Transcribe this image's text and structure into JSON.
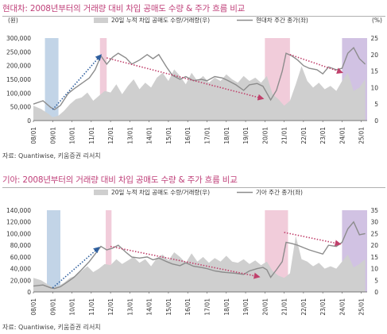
{
  "chart_data": [
    {
      "type": "line",
      "title": "현대차: 2008년부터의 거래량 대비 차입 공매도 수량 & 주가 흐름 비교",
      "source": "자료: Quantiwise, 키움증권 리서치",
      "y_left_unit": "(원)",
      "y_right_unit": "(%)",
      "y_left_ticks": [
        "0",
        "50,000",
        "100,000",
        "150,000",
        "200,000",
        "250,000",
        "300,000"
      ],
      "y_right_ticks": [
        "0",
        "5",
        "10",
        "15",
        "20",
        "25"
      ],
      "ylim_left": [
        0,
        300000
      ],
      "ylim_right": [
        0,
        25
      ],
      "x_ticks": [
        "08/01",
        "09/01",
        "10/01",
        "11/01",
        "12/01",
        "13/01",
        "14/01",
        "15/01",
        "16/01",
        "17/01",
        "18/01",
        "19/01",
        "20/01",
        "21/01",
        "22/01",
        "23/01",
        "24/01",
        "25/01"
      ],
      "x_range": [
        2008.0,
        2025.3
      ],
      "grid": false,
      "legend_position": "top",
      "series": [
        {
          "name": "20일 누적 차입 공매도 수량/거래량(우)",
          "kind": "area",
          "color": "#cfcfcf",
          "x": [
            2008.0,
            2008.4,
            2008.8,
            2009.0,
            2009.3,
            2009.6,
            2009.9,
            2010.2,
            2010.5,
            2010.8,
            2011.1,
            2011.4,
            2011.7,
            2012.0,
            2012.3,
            2012.6,
            2012.9,
            2013.2,
            2013.5,
            2013.8,
            2014.1,
            2014.4,
            2014.7,
            2015.0,
            2015.3,
            2015.6,
            2015.9,
            2016.2,
            2016.5,
            2016.8,
            2017.1,
            2017.4,
            2017.7,
            2018.0,
            2018.3,
            2018.6,
            2018.9,
            2019.2,
            2019.5,
            2019.8,
            2020.1,
            2020.4,
            2020.7,
            2021.0,
            2021.3,
            2021.6,
            2021.9,
            2022.2,
            2022.5,
            2022.8,
            2023.1,
            2023.4,
            2023.7,
            2024.0,
            2024.3,
            2024.6,
            2024.9,
            2025.2
          ],
          "values": [
            4.5,
            3.5,
            2.0,
            1.0,
            1.5,
            3.0,
            5.0,
            6.5,
            7.0,
            8.5,
            6.0,
            7.5,
            9.0,
            8.5,
            11.0,
            8.0,
            10.5,
            12.5,
            9.5,
            11.5,
            10.0,
            13.0,
            14.5,
            12.0,
            15.5,
            13.5,
            11.0,
            14.5,
            12.0,
            13.5,
            11.5,
            13.0,
            12.0,
            14.0,
            12.5,
            11.5,
            13.5,
            12.0,
            13.0,
            11.5,
            13.5,
            8.0,
            6.5,
            4.5,
            6.0,
            11.0,
            16.5,
            12.0,
            10.0,
            11.5,
            9.5,
            10.5,
            9.0,
            12.0,
            14.5,
            9.0,
            10.0,
            12.5
          ]
        },
        {
          "name": "현대차 주간 종가(좌)",
          "kind": "line",
          "color": "#8c8c8c",
          "x": [
            2008.0,
            2008.5,
            2008.9,
            2009.1,
            2009.4,
            2009.8,
            2010.1,
            2010.5,
            2010.9,
            2011.2,
            2011.5,
            2011.8,
            2012.1,
            2012.4,
            2012.8,
            2013.1,
            2013.5,
            2013.9,
            2014.2,
            2014.5,
            2014.9,
            2015.2,
            2015.6,
            2015.9,
            2016.3,
            2016.7,
            2017.0,
            2017.4,
            2017.8,
            2018.1,
            2018.5,
            2018.9,
            2019.2,
            2019.6,
            2019.9,
            2020.1,
            2020.3,
            2020.6,
            2020.9,
            2021.1,
            2021.4,
            2021.7,
            2022.0,
            2022.3,
            2022.7,
            2023.0,
            2023.3,
            2023.7,
            2024.0,
            2024.3,
            2024.6,
            2024.9,
            2025.2
          ],
          "values": [
            60000,
            72000,
            48000,
            40000,
            55000,
            98000,
            115000,
            135000,
            155000,
            185000,
            235000,
            205000,
            230000,
            245000,
            228000,
            205000,
            220000,
            240000,
            225000,
            240000,
            195000,
            165000,
            150000,
            160000,
            145000,
            150000,
            145000,
            160000,
            155000,
            145000,
            130000,
            110000,
            130000,
            135000,
            125000,
            100000,
            75000,
            110000,
            180000,
            245000,
            235000,
            220000,
            200000,
            190000,
            185000,
            170000,
            195000,
            185000,
            190000,
            245000,
            265000,
            225000,
            205000
          ]
        }
      ],
      "bands": [
        {
          "from": 2008.6,
          "to": 2009.3,
          "color": "#b7cde3"
        },
        {
          "from": 2011.45,
          "to": 2011.8,
          "color": "#efc3d3"
        },
        {
          "from": 2020.0,
          "to": 2021.3,
          "color": "#efc3d3"
        },
        {
          "from": 2024.0,
          "to": 2025.3,
          "color": "#c9b7de"
        }
      ],
      "arrows": [
        {
          "x1": 2009.0,
          "y1": 40000,
          "x2": 2011.5,
          "y2": 238000,
          "color": "#2f5f9e"
        },
        {
          "x1": 2011.8,
          "y1": 228000,
          "x2": 2019.9,
          "y2": 80000,
          "color": "#c0406b"
        },
        {
          "x1": 2021.3,
          "y1": 240000,
          "x2": 2024.0,
          "y2": 175000,
          "color": "#c0406b"
        }
      ]
    },
    {
      "type": "line",
      "title": "기아: 2008년부터의 거래량 대비 차입 공매도 수량 & 주가 흐름 비교",
      "source": "자료: Quantiwise, 키움증권 리서치",
      "y_left_ticks": [
        "0",
        "20,000",
        "40,000",
        "60,000",
        "80,000",
        "100,000",
        "120,000",
        "140,000"
      ],
      "y_right_ticks": [
        "0",
        "5",
        "10",
        "15",
        "20",
        "25",
        "30",
        "35"
      ],
      "ylim_left": [
        0,
        140000
      ],
      "ylim_right": [
        0,
        35
      ],
      "x_ticks": [
        "08/01",
        "09/01",
        "10/01",
        "11/01",
        "12/01",
        "13/01",
        "14/01",
        "15/01",
        "16/01",
        "17/01",
        "18/01",
        "19/01",
        "20/01",
        "21/01",
        "22/01",
        "23/01",
        "24/01",
        "25/01"
      ],
      "x_range": [
        2008.0,
        2025.3
      ],
      "grid": false,
      "legend_position": "top",
      "series": [
        {
          "name": "20일 누적 차입 공매도 수량/거래량(우)",
          "kind": "area",
          "color": "#cfcfcf",
          "x": [
            2008.0,
            2008.4,
            2008.8,
            2009.0,
            2009.3,
            2009.6,
            2009.9,
            2010.2,
            2010.5,
            2010.8,
            2011.1,
            2011.4,
            2011.7,
            2012.0,
            2012.3,
            2012.6,
            2012.9,
            2013.2,
            2013.5,
            2013.8,
            2014.1,
            2014.4,
            2014.7,
            2015.0,
            2015.3,
            2015.6,
            2015.9,
            2016.2,
            2016.5,
            2016.8,
            2017.1,
            2017.4,
            2017.7,
            2018.0,
            2018.3,
            2018.6,
            2018.9,
            2019.2,
            2019.5,
            2019.8,
            2020.1,
            2020.4,
            2020.7,
            2021.0,
            2021.3,
            2021.6,
            2021.9,
            2022.2,
            2022.5,
            2022.8,
            2023.1,
            2023.4,
            2023.7,
            2024.0,
            2024.3,
            2024.6,
            2024.9,
            2025.2
          ],
          "values": [
            6.0,
            5.0,
            3.0,
            2.0,
            2.5,
            4.0,
            6.0,
            7.0,
            9.0,
            11.0,
            8.5,
            10.0,
            12.0,
            11.5,
            14.0,
            12.0,
            13.5,
            15.0,
            12.5,
            14.0,
            11.0,
            14.5,
            16.0,
            13.5,
            17.0,
            15.0,
            12.5,
            16.5,
            13.0,
            15.0,
            12.5,
            14.5,
            13.0,
            15.5,
            13.0,
            12.5,
            14.0,
            12.0,
            13.5,
            11.5,
            13.0,
            9.0,
            7.0,
            6.0,
            8.0,
            24.0,
            14.0,
            13.0,
            11.0,
            12.5,
            10.0,
            11.0,
            10.0,
            13.0,
            16.0,
            10.5,
            12.0,
            14.0
          ]
        },
        {
          "name": "기아 주간 종가(좌)",
          "kind": "line",
          "color": "#8c8c8c",
          "x": [
            2008.0,
            2008.5,
            2008.9,
            2009.1,
            2009.4,
            2009.8,
            2010.1,
            2010.5,
            2010.9,
            2011.2,
            2011.5,
            2011.8,
            2012.1,
            2012.4,
            2012.8,
            2013.1,
            2013.5,
            2013.9,
            2014.2,
            2014.5,
            2014.9,
            2015.2,
            2015.6,
            2015.9,
            2016.3,
            2016.7,
            2017.0,
            2017.4,
            2017.8,
            2018.1,
            2018.5,
            2018.9,
            2019.2,
            2019.6,
            2019.9,
            2020.1,
            2020.3,
            2020.6,
            2020.9,
            2021.1,
            2021.4,
            2021.7,
            2022.0,
            2022.3,
            2022.7,
            2023.0,
            2023.3,
            2023.7,
            2024.0,
            2024.3,
            2024.6,
            2024.9,
            2025.2
          ],
          "values": [
            10000,
            12000,
            7000,
            6000,
            9000,
            18000,
            25000,
            38000,
            52000,
            65000,
            78000,
            72000,
            75000,
            80000,
            68000,
            60000,
            58000,
            60000,
            55000,
            58000,
            52000,
            48000,
            45000,
            50000,
            44000,
            42000,
            40000,
            36000,
            34000,
            33000,
            32000,
            30000,
            36000,
            40000,
            42000,
            38000,
            25000,
            38000,
            52000,
            85000,
            83000,
            80000,
            76000,
            72000,
            68000,
            65000,
            80000,
            78000,
            85000,
            108000,
            120000,
            98000,
            100000
          ]
        }
      ],
      "bands": [
        {
          "from": 2008.7,
          "to": 2009.4,
          "color": "#b7cde3"
        },
        {
          "from": 2011.75,
          "to": 2012.05,
          "color": "#efc3d3"
        },
        {
          "from": 2020.0,
          "to": 2021.2,
          "color": "#efc3d3"
        },
        {
          "from": 2024.0,
          "to": 2025.3,
          "color": "#c9b7de"
        }
      ],
      "arrows": [
        {
          "x1": 2009.0,
          "y1": 7000,
          "x2": 2011.4,
          "y2": 76000,
          "color": "#2f5f9e"
        },
        {
          "x1": 2012.0,
          "y1": 78000,
          "x2": 2019.7,
          "y2": 26000,
          "color": "#c0406b"
        },
        {
          "x1": 2021.0,
          "y1": 102000,
          "x2": 2023.9,
          "y2": 82000,
          "color": "#c0406b"
        }
      ]
    }
  ]
}
